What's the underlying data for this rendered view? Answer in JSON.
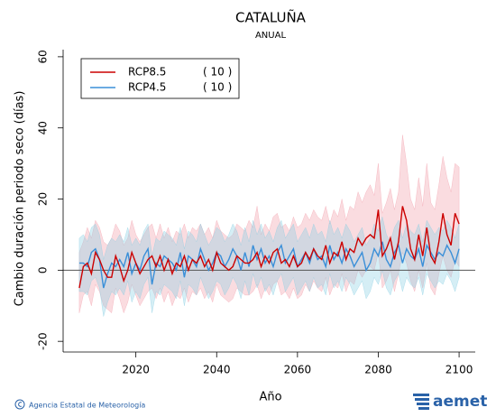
{
  "chart_data": {
    "type": "line",
    "title": "CATALUÑA",
    "subtitle": "ANUAL",
    "x_label": "Año",
    "y_label": "Cambio duración periodo seco (días)",
    "source": "Agencia Estatal de Meteorología",
    "logo": "aemet",
    "xlim": [
      2002,
      2104
    ],
    "xticks": [
      2020,
      2040,
      2060,
      2080,
      2100
    ],
    "ylim": [
      -23,
      62
    ],
    "yticks": [
      -20,
      0,
      20,
      40,
      60
    ],
    "reference_line": 0,
    "legend": "top-left",
    "x": [
      2006,
      2007,
      2008,
      2009,
      2010,
      2011,
      2012,
      2013,
      2014,
      2015,
      2016,
      2017,
      2018,
      2019,
      2020,
      2021,
      2022,
      2023,
      2024,
      2025,
      2026,
      2027,
      2028,
      2029,
      2030,
      2031,
      2032,
      2033,
      2034,
      2035,
      2036,
      2037,
      2038,
      2039,
      2040,
      2041,
      2042,
      2043,
      2044,
      2045,
      2046,
      2047,
      2048,
      2049,
      2050,
      2051,
      2052,
      2053,
      2054,
      2055,
      2056,
      2057,
      2058,
      2059,
      2060,
      2061,
      2062,
      2063,
      2064,
      2065,
      2066,
      2067,
      2068,
      2069,
      2070,
      2071,
      2072,
      2073,
      2074,
      2075,
      2076,
      2077,
      2078,
      2079,
      2080,
      2081,
      2082,
      2083,
      2084,
      2085,
      2086,
      2087,
      2088,
      2089,
      2090,
      2091,
      2092,
      2093,
      2094,
      2095,
      2096,
      2097,
      2098,
      2099,
      2100
    ],
    "series": [
      {
        "name": "RCP8.5",
        "count_label": "( 10 )",
        "color": "#cc0000",
        "band_color": "#f29aa6",
        "values": [
          -5,
          1,
          2,
          -1,
          5,
          3,
          0,
          -2,
          -2,
          4,
          1,
          -3,
          0,
          5,
          2,
          -1,
          1,
          3,
          4,
          1,
          4,
          0,
          3,
          -1,
          2,
          1,
          4,
          0,
          3,
          2,
          4,
          1,
          3,
          0,
          5,
          2,
          1,
          0,
          1,
          4,
          3,
          2,
          2,
          3,
          5,
          1,
          4,
          2,
          5,
          6,
          2,
          3,
          1,
          4,
          1,
          2,
          5,
          3,
          6,
          4,
          3,
          7,
          2,
          5,
          4,
          8,
          3,
          6,
          5,
          9,
          7,
          9,
          10,
          9,
          17,
          4,
          6,
          9,
          3,
          8,
          18,
          14,
          6,
          3,
          10,
          4,
          12,
          4,
          2,
          8,
          16,
          10,
          7,
          16,
          13
        ],
        "upper": [
          5,
          8,
          12,
          9,
          14,
          12,
          8,
          7,
          9,
          13,
          11,
          7,
          9,
          14,
          10,
          8,
          10,
          12,
          13,
          9,
          13,
          9,
          12,
          8,
          11,
          10,
          13,
          9,
          12,
          11,
          13,
          10,
          12,
          9,
          14,
          11,
          10,
          9,
          10,
          13,
          12,
          11,
          14,
          12,
          18,
          10,
          13,
          11,
          15,
          16,
          12,
          13,
          11,
          15,
          12,
          13,
          16,
          14,
          17,
          15,
          14,
          18,
          13,
          17,
          15,
          20,
          14,
          18,
          17,
          22,
          19,
          22,
          24,
          21,
          30,
          16,
          19,
          23,
          17,
          22,
          38,
          30,
          20,
          17,
          26,
          18,
          30,
          19,
          17,
          24,
          32,
          26,
          22,
          30,
          29
        ],
        "lower": [
          -12,
          -7,
          -6,
          -10,
          -4,
          -6,
          -10,
          -11,
          -12,
          -5,
          -8,
          -12,
          -9,
          -4,
          -7,
          -10,
          -8,
          -6,
          -5,
          -8,
          -5,
          -9,
          -6,
          -10,
          -7,
          -8,
          -5,
          -9,
          -6,
          -7,
          -5,
          -8,
          -6,
          -9,
          -4,
          -7,
          -8,
          -9,
          -8,
          -5,
          -6,
          -7,
          -7,
          -6,
          -4,
          -8,
          -5,
          -7,
          -4,
          -3,
          -7,
          -6,
          -8,
          -5,
          -8,
          -7,
          -4,
          -6,
          -3,
          -5,
          -6,
          -2,
          -7,
          -4,
          -5,
          -1,
          -6,
          -3,
          -4,
          0,
          -2,
          0,
          1,
          0,
          5,
          -5,
          -3,
          0,
          -6,
          -1,
          5,
          2,
          -3,
          -6,
          0,
          -5,
          2,
          -5,
          -7,
          -1,
          4,
          0,
          -2,
          3,
          1
        ]
      },
      {
        "name": "RCP4.5",
        "count_label": "( 10 )",
        "color": "#3a8fd8",
        "band_color": "#86cde3",
        "values": [
          2,
          2,
          1,
          5,
          6,
          3,
          -5,
          -1,
          2,
          1,
          3,
          1,
          5,
          -1,
          2,
          0,
          4,
          6,
          -4,
          2,
          1,
          4,
          3,
          2,
          0,
          5,
          -2,
          4,
          3,
          1,
          6,
          3,
          0,
          2,
          5,
          4,
          1,
          3,
          6,
          4,
          0,
          5,
          1,
          7,
          3,
          6,
          2,
          4,
          1,
          5,
          7,
          2,
          4,
          6,
          1,
          3,
          5,
          2,
          6,
          3,
          4,
          1,
          7,
          3,
          5,
          2,
          6,
          4,
          1,
          3,
          5,
          0,
          2,
          6,
          4,
          8,
          3,
          1,
          5,
          7,
          2,
          6,
          4,
          3,
          6,
          1,
          7,
          5,
          3,
          5,
          4,
          7,
          5,
          2,
          6
        ],
        "upper": [
          9,
          10,
          8,
          12,
          13,
          10,
          3,
          7,
          9,
          8,
          10,
          8,
          12,
          7,
          9,
          7,
          11,
          13,
          4,
          9,
          8,
          11,
          10,
          9,
          7,
          12,
          6,
          11,
          10,
          8,
          13,
          10,
          7,
          9,
          12,
          11,
          8,
          10,
          13,
          11,
          7,
          12,
          8,
          14,
          10,
          13,
          9,
          11,
          8,
          12,
          14,
          9,
          11,
          13,
          8,
          10,
          12,
          9,
          13,
          10,
          11,
          8,
          14,
          10,
          12,
          9,
          13,
          11,
          8,
          10,
          12,
          7,
          9,
          13,
          11,
          15,
          10,
          8,
          12,
          14,
          9,
          13,
          11,
          10,
          13,
          8,
          14,
          12,
          10,
          12,
          11,
          14,
          12,
          9,
          13
        ],
        "lower": [
          -6,
          -6,
          -7,
          -3,
          -2,
          -5,
          -13,
          -9,
          -6,
          -7,
          -5,
          -7,
          -3,
          -9,
          -6,
          -8,
          -4,
          -2,
          -12,
          -6,
          -7,
          -4,
          -5,
          -6,
          -8,
          -3,
          -10,
          -4,
          -5,
          -7,
          -2,
          -5,
          -8,
          -6,
          -3,
          -4,
          -7,
          -5,
          -2,
          -4,
          -8,
          -3,
          -7,
          -1,
          -5,
          -2,
          -6,
          -4,
          -7,
          -3,
          -1,
          -6,
          -4,
          -2,
          -7,
          -5,
          -3,
          -6,
          -2,
          -5,
          -4,
          -7,
          -1,
          -5,
          -3,
          -6,
          -2,
          -4,
          -7,
          -5,
          -3,
          -8,
          -6,
          -2,
          -4,
          0,
          -5,
          -7,
          -3,
          -1,
          -6,
          -2,
          -4,
          -5,
          -2,
          -7,
          -1,
          -3,
          -5,
          -3,
          -4,
          -1,
          -3,
          -6,
          -2
        ]
      }
    ]
  }
}
